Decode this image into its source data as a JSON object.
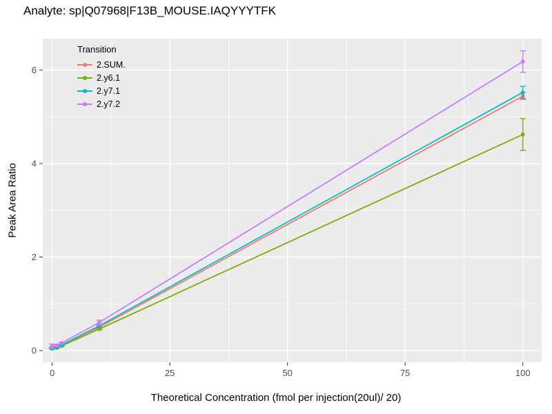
{
  "title": "Analyte: sp|Q07968|F13B_MOUSE.IAQYYYTFK",
  "chart_data": {
    "type": "line",
    "title": "Analyte: sp|Q07968|F13B_MOUSE.IAQYYYTFK",
    "xlabel": "Theoretical Concentration (fmol per injection(20ul)/ 20)",
    "ylabel": "Peak Area Ratio",
    "xlim": [
      -2,
      104
    ],
    "ylim": [
      -0.25,
      6.67
    ],
    "xticks": [
      0,
      25,
      50,
      75,
      100
    ],
    "yticks": [
      0,
      2,
      4,
      6
    ],
    "xminor": [
      12.5,
      37.5,
      62.5,
      87.5
    ],
    "yminor": [
      1,
      3,
      5
    ],
    "grid": "on",
    "panel_bg": "#EBEBEB",
    "grid_color": "#FFFFFF",
    "tick_label_color": "#4D4D4D",
    "legend": {
      "title": "Transition",
      "position": "top-left-inside"
    },
    "x": [
      0,
      1,
      2,
      10,
      100
    ],
    "series": [
      {
        "name": "2.SUM.",
        "color": "#F8766D",
        "values": [
          0.05,
          0.07,
          0.12,
          0.5,
          5.44
        ],
        "errors": [
          0.02,
          0.01,
          0.01,
          0.03,
          0.07
        ]
      },
      {
        "name": "2.y6.1",
        "color": "#7CAE00",
        "values": [
          0.04,
          0.06,
          0.1,
          0.46,
          4.62
        ],
        "errors": [
          0.01,
          0.01,
          0.01,
          0.02,
          0.34
        ]
      },
      {
        "name": "2.y7.1",
        "color": "#00BFC4",
        "values": [
          0.05,
          0.07,
          0.12,
          0.53,
          5.52
        ],
        "errors": [
          0.02,
          0.01,
          0.01,
          0.03,
          0.13
        ]
      },
      {
        "name": "2.y7.2",
        "color": "#C77CFF",
        "values": [
          0.09,
          0.11,
          0.16,
          0.6,
          6.18
        ],
        "errors": [
          0.05,
          0.02,
          0.02,
          0.05,
          0.23
        ]
      }
    ]
  }
}
